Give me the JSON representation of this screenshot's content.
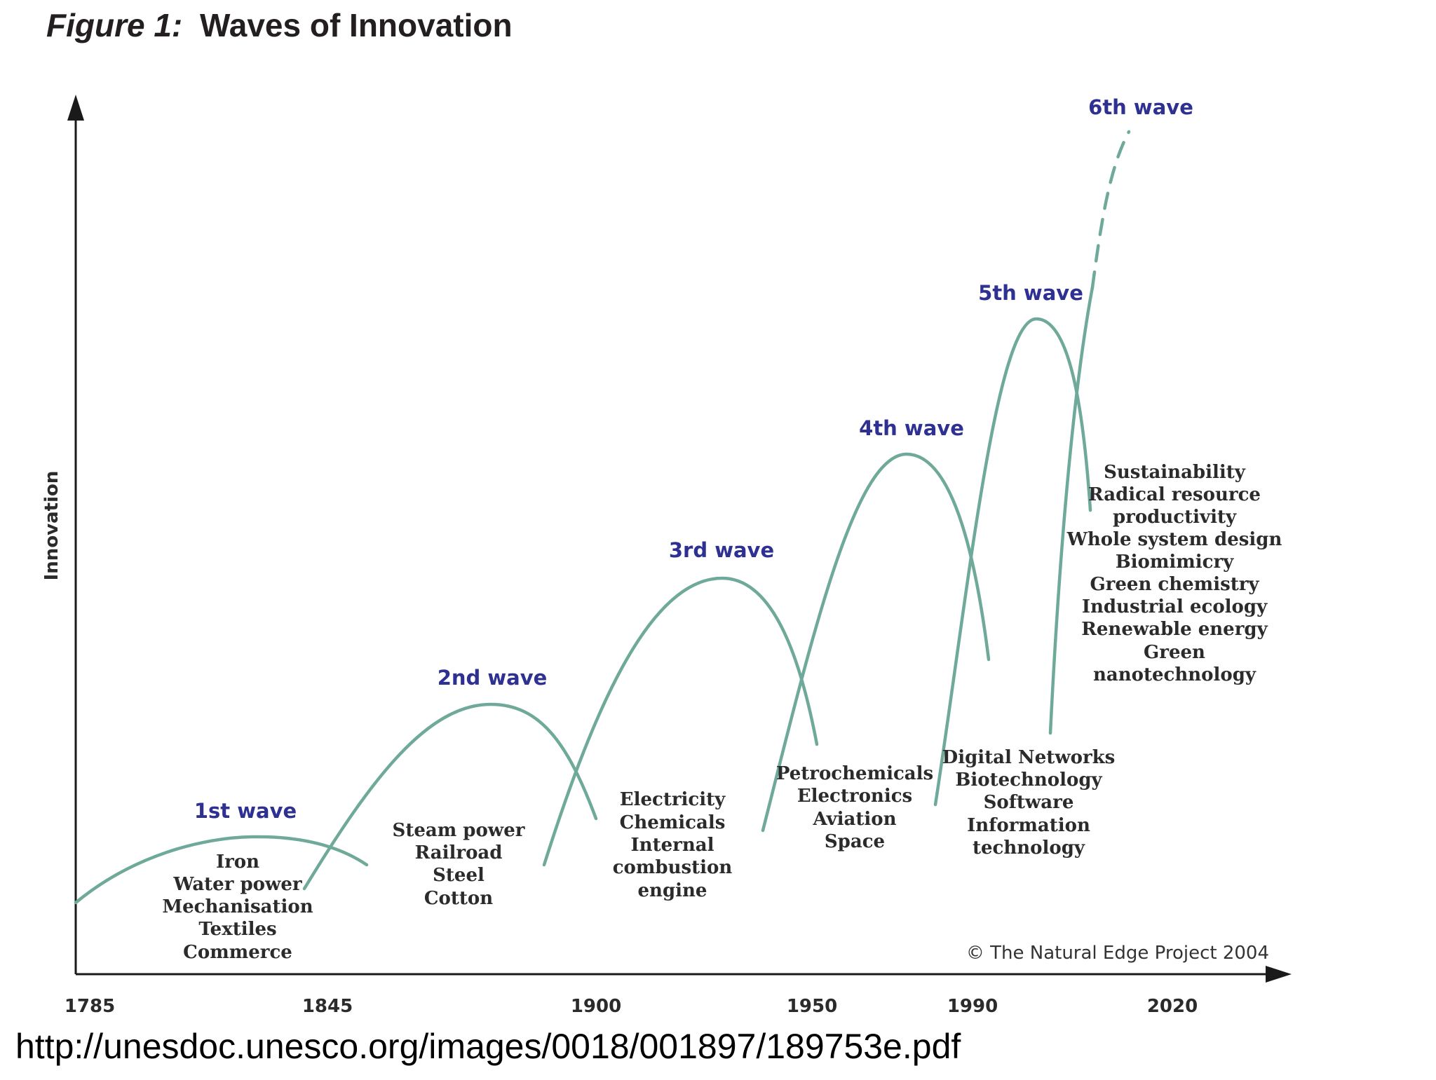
{
  "figure": {
    "title_prefix": "Figure 1:",
    "title_main": "Waves of Innovation",
    "y_axis_label": "Innovation",
    "copyright": "© The Natural Edge Project 2004",
    "source_url": "http://unesdoc.unesco.org/images/0018/001897/189753e.pdf",
    "curve_color": "#6ea99a",
    "label_color": "#2e3192"
  },
  "years": [
    "1785",
    "1845",
    "1900",
    "1950",
    "1990",
    "2020"
  ],
  "waves": [
    {
      "label": "1st wave",
      "technologies": [
        "Iron",
        "Water power",
        "Mechanisation",
        "Textiles",
        "Commerce"
      ]
    },
    {
      "label": "2nd wave",
      "technologies": [
        "Steam power",
        "Railroad",
        "Steel",
        "Cotton"
      ]
    },
    {
      "label": "3rd wave",
      "technologies": [
        "Electricity",
        "Chemicals",
        "Internal",
        "combustion",
        "engine"
      ]
    },
    {
      "label": "4th wave",
      "technologies": [
        "Petrochemicals",
        "Electronics",
        "Aviation",
        "Space"
      ]
    },
    {
      "label": "5th wave",
      "technologies": [
        "Digital Networks",
        "Biotechnology",
        "Software",
        "Information",
        "technology"
      ]
    },
    {
      "label": "6th wave",
      "technologies": [
        "Sustainability",
        "Radical resource",
        "productivity",
        "Whole system design",
        "Biomimicry",
        "Green chemistry",
        "Industrial ecology",
        "Renewable energy",
        "Green",
        "nanotechnology"
      ]
    }
  ]
}
